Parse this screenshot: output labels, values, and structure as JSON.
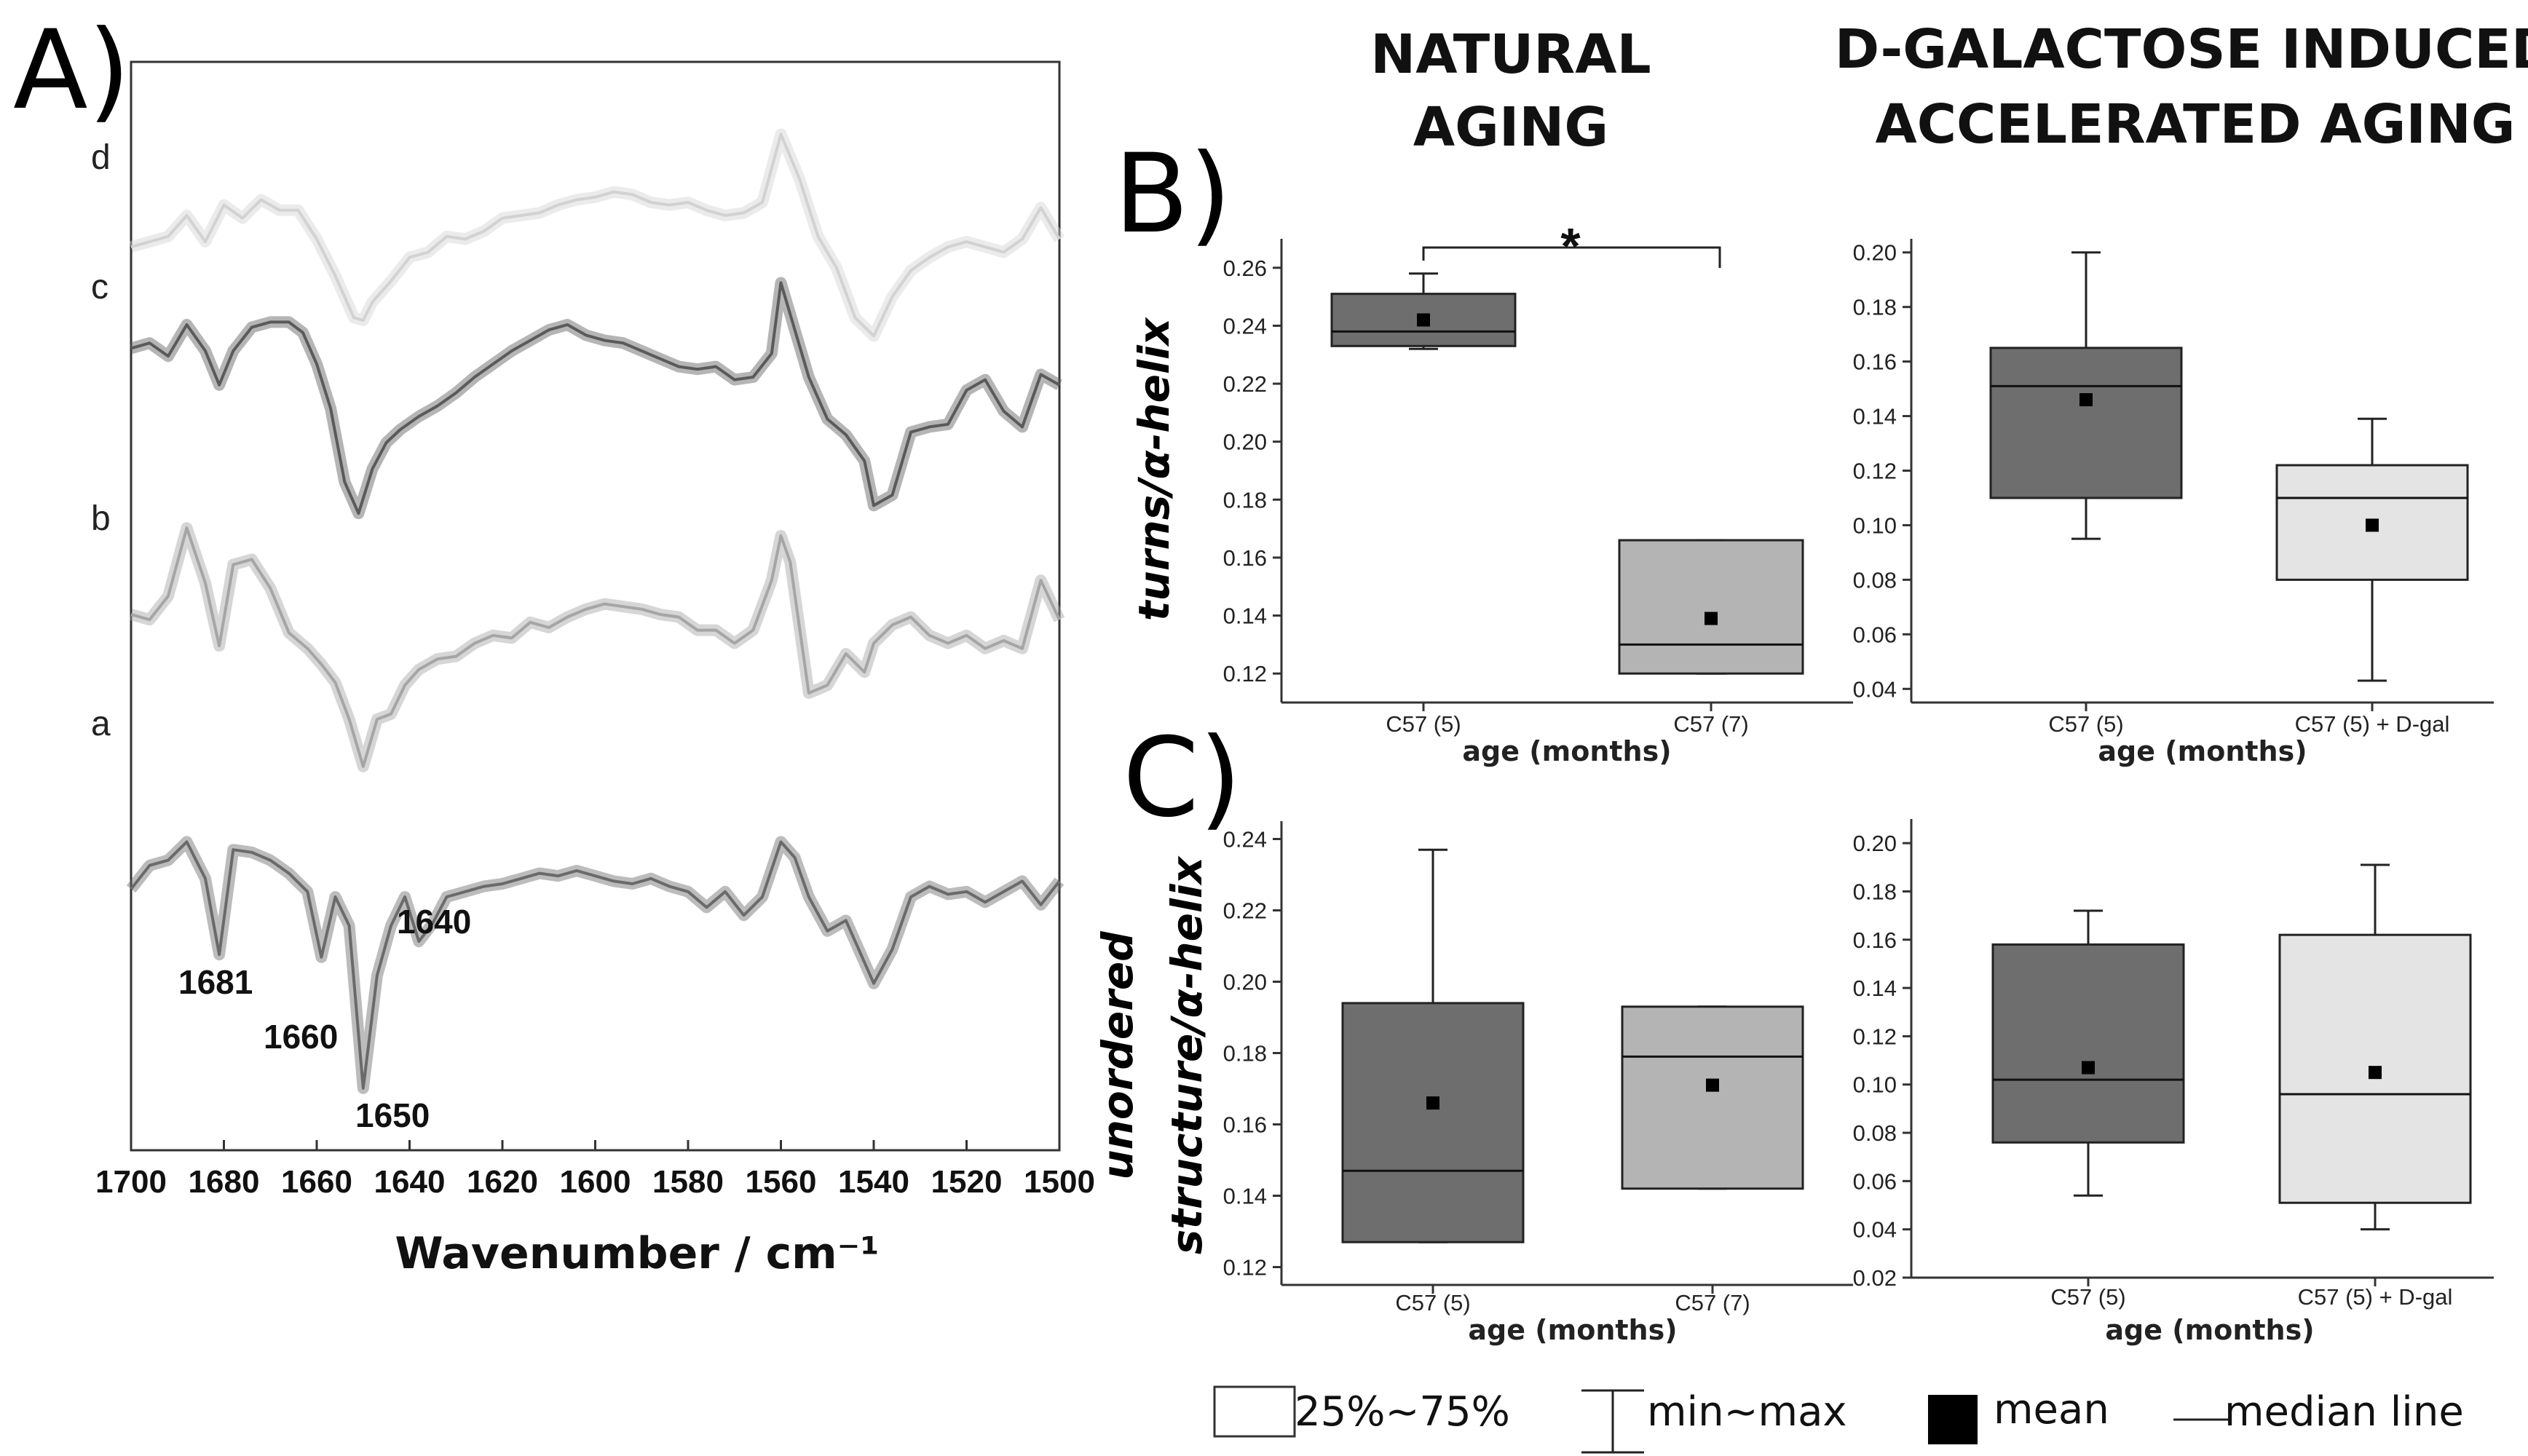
{
  "headings": {
    "natural": [
      "NATURAL",
      "AGING"
    ],
    "dgal": [
      "D-GALACTOSE INDUCED",
      "ACCELERATED AGING"
    ]
  },
  "panel_letters": {
    "a": "A)",
    "b": "B)",
    "c": "C)"
  },
  "y_labels": {
    "b": "turns/α-helix",
    "c_line1": "unordered",
    "c_line2": "structure/α-helix"
  },
  "legend": {
    "box": "25%~75%",
    "whisker": "min~max",
    "mean": "mean",
    "median": "median line"
  },
  "colors": {
    "dark_box": "#6e6e6e",
    "mid_box": "#b4b4b4",
    "light_box": "#e4e4e4"
  },
  "chart_data": [
    {
      "id": "A",
      "type": "line",
      "title": "",
      "xlabel": "Wavenumber  / cm⁻¹",
      "ylabel": "",
      "xlim": [
        1700,
        1500
      ],
      "xticks": [
        "1700",
        "1680",
        "1660",
        "1640",
        "1620",
        "1600",
        "1580",
        "1560",
        "1540",
        "1520",
        "1500"
      ],
      "series": [
        {
          "name": "d",
          "color": "#d2d2d2",
          "x": [
            1700,
            1696,
            1692,
            1688,
            1684,
            1680,
            1676,
            1672,
            1668,
            1664,
            1660,
            1656,
            1652,
            1650,
            1648,
            1644,
            1640,
            1636,
            1632,
            1628,
            1624,
            1620,
            1616,
            1612,
            1608,
            1604,
            1600,
            1596,
            1592,
            1588,
            1584,
            1580,
            1576,
            1572,
            1568,
            1564,
            1560,
            1556,
            1552,
            1548,
            1544,
            1540,
            1536,
            1532,
            1528,
            1524,
            1520,
            1516,
            1512,
            1508,
            1504,
            1500
          ],
          "y": [
            0.44,
            0.4,
            0.36,
            0.2,
            0.4,
            0.12,
            0.22,
            0.08,
            0.16,
            0.16,
            0.38,
            0.66,
            0.98,
            1.0,
            0.86,
            0.7,
            0.52,
            0.48,
            0.36,
            0.38,
            0.32,
            0.22,
            0.2,
            0.18,
            0.12,
            0.08,
            0.06,
            0.02,
            0.04,
            0.1,
            0.12,
            0.1,
            0.16,
            0.2,
            0.18,
            0.1,
            -0.42,
            -0.08,
            0.36,
            0.6,
            0.98,
            1.12,
            0.82,
            0.62,
            0.52,
            0.44,
            0.4,
            0.44,
            0.48,
            0.38,
            0.14,
            0.38
          ]
        },
        {
          "name": "c",
          "color": "#5a5a5a",
          "x": [
            1700,
            1696,
            1692,
            1688,
            1684,
            1681,
            1678,
            1674,
            1670,
            1666,
            1663,
            1660,
            1657,
            1654,
            1651,
            1648,
            1645,
            1642,
            1638,
            1634,
            1630,
            1626,
            1622,
            1618,
            1614,
            1610,
            1606,
            1602,
            1598,
            1594,
            1590,
            1586,
            1582,
            1578,
            1574,
            1570,
            1566,
            1562,
            1560,
            1557,
            1554,
            1550,
            1546,
            1542,
            1540,
            1536,
            1532,
            1528,
            1524,
            1520,
            1516,
            1512,
            1508,
            1504,
            1500
          ],
          "y": [
            0.38,
            0.34,
            0.44,
            0.2,
            0.4,
            0.66,
            0.4,
            0.22,
            0.18,
            0.18,
            0.26,
            0.5,
            0.84,
            1.4,
            1.64,
            1.3,
            1.1,
            1.0,
            0.9,
            0.82,
            0.72,
            0.6,
            0.5,
            0.4,
            0.32,
            0.24,
            0.2,
            0.28,
            0.32,
            0.34,
            0.4,
            0.46,
            0.52,
            0.54,
            0.52,
            0.62,
            0.6,
            0.42,
            -0.12,
            0.24,
            0.6,
            0.92,
            1.04,
            1.24,
            1.58,
            1.5,
            1.02,
            0.98,
            0.96,
            0.7,
            0.62,
            0.86,
            0.98,
            0.58,
            0.66
          ]
        },
        {
          "name": "b",
          "color": "#a5a5a5",
          "x": [
            1700,
            1696,
            1692,
            1688,
            1684,
            1681,
            1678,
            1674,
            1670,
            1666,
            1662,
            1659,
            1656,
            1653,
            1650,
            1647,
            1644,
            1641,
            1638,
            1634,
            1630,
            1626,
            1622,
            1618,
            1614,
            1610,
            1606,
            1602,
            1598,
            1594,
            1590,
            1586,
            1582,
            1578,
            1574,
            1570,
            1566,
            1562,
            1560,
            1558,
            1554,
            1550,
            1546,
            1542,
            1540,
            1536,
            1532,
            1528,
            1524,
            1520,
            1516,
            1512,
            1508,
            1504,
            1500
          ],
          "y": [
            0.8,
            0.84,
            0.66,
            0.14,
            0.56,
            1.04,
            0.42,
            0.38,
            0.6,
            0.94,
            1.06,
            1.18,
            1.32,
            1.6,
            1.96,
            1.6,
            1.56,
            1.34,
            1.22,
            1.14,
            1.12,
            1.02,
            0.96,
            0.98,
            0.86,
            0.9,
            0.82,
            0.76,
            0.72,
            0.74,
            0.76,
            0.8,
            0.82,
            0.92,
            0.92,
            1.02,
            0.92,
            0.54,
            0.2,
            0.4,
            1.4,
            1.34,
            1.1,
            1.24,
            1.02,
            0.88,
            0.82,
            0.96,
            1.02,
            0.96,
            1.06,
            1.0,
            1.06,
            0.54,
            0.84
          ]
        },
        {
          "name": "a",
          "color": "#6a6a6a",
          "x": [
            1700,
            1696,
            1692,
            1688,
            1684,
            1681,
            1678,
            1674,
            1670,
            1666,
            1662,
            1659,
            1656,
            1653,
            1650,
            1647,
            1644,
            1641,
            1638,
            1635,
            1632,
            1628,
            1624,
            1620,
            1616,
            1612,
            1608,
            1604,
            1600,
            1596,
            1592,
            1588,
            1584,
            1580,
            1576,
            1572,
            1568,
            1564,
            1560,
            1557,
            1554,
            1550,
            1546,
            1542,
            1540,
            1536,
            1532,
            1528,
            1524,
            1520,
            1516,
            1512,
            1508,
            1504,
            1500
          ],
          "y": [
            1.34,
            1.16,
            1.12,
            0.98,
            1.26,
            1.84,
            1.04,
            1.06,
            1.12,
            1.22,
            1.36,
            1.86,
            1.4,
            1.62,
            2.86,
            2.0,
            1.62,
            1.4,
            1.74,
            1.6,
            1.4,
            1.36,
            1.32,
            1.3,
            1.26,
            1.22,
            1.24,
            1.2,
            1.24,
            1.28,
            1.3,
            1.26,
            1.32,
            1.36,
            1.48,
            1.36,
            1.54,
            1.4,
            0.98,
            1.1,
            1.4,
            1.66,
            1.58,
            1.9,
            2.06,
            1.8,
            1.4,
            1.32,
            1.38,
            1.36,
            1.44,
            1.36,
            1.28,
            1.46,
            1.28
          ]
        }
      ],
      "peak_labels": [
        {
          "label": "1681",
          "x": 1681
        },
        {
          "label": "1660",
          "x": 1660
        },
        {
          "label": "1650",
          "x": 1650
        },
        {
          "label": "1640",
          "x": 1640
        }
      ]
    },
    {
      "id": "B-natural",
      "type": "box",
      "ylabel": "turns/α-helix",
      "xlabel": "age (months)",
      "ylim": [
        0.11,
        0.27
      ],
      "yticks": [
        "0.12",
        "0.14",
        "0.16",
        "0.18",
        "0.20",
        "0.22",
        "0.24",
        "0.26"
      ],
      "significance": "*",
      "boxes": [
        {
          "category": "C57 (5)",
          "fill": "#6e6e6e",
          "min": 0.232,
          "q1": 0.233,
          "median": 0.238,
          "q3": 0.251,
          "max": 0.258,
          "mean": 0.242
        },
        {
          "category": "C57 (7)",
          "fill": "#b4b4b4",
          "min": 0.12,
          "q1": 0.12,
          "median": 0.13,
          "q3": 0.166,
          "max": 0.166,
          "mean": 0.139
        }
      ]
    },
    {
      "id": "B-dgal",
      "type": "box",
      "ylabel": "",
      "xlabel": "age (months)",
      "ylim": [
        0.035,
        0.205
      ],
      "yticks": [
        "0.04",
        "0.06",
        "0.08",
        "0.10",
        "0.12",
        "0.14",
        "0.16",
        "0.18",
        "0.20"
      ],
      "boxes": [
        {
          "category": "C57 (5)",
          "fill": "#6e6e6e",
          "min": 0.095,
          "q1": 0.11,
          "median": 0.151,
          "q3": 0.165,
          "max": 0.2,
          "mean": 0.146
        },
        {
          "category": "C57 (5) + D-gal",
          "fill": "#e4e4e4",
          "min": 0.043,
          "q1": 0.08,
          "median": 0.11,
          "q3": 0.122,
          "max": 0.139,
          "mean": 0.1
        }
      ]
    },
    {
      "id": "C-natural",
      "type": "box",
      "ylabel": "unordered structure/α-helix",
      "xlabel": "age (months)",
      "ylim": [
        0.115,
        0.245
      ],
      "yticks": [
        "0.12",
        "0.14",
        "0.16",
        "0.18",
        "0.20",
        "0.22",
        "0.24"
      ],
      "boxes": [
        {
          "category": "C57 (5)",
          "fill": "#6e6e6e",
          "min": 0.127,
          "q1": 0.127,
          "median": 0.147,
          "q3": 0.194,
          "max": 0.237,
          "mean": 0.166
        },
        {
          "category": "C57 (7)",
          "fill": "#b4b4b4",
          "min": 0.142,
          "q1": 0.142,
          "median": 0.179,
          "q3": 0.193,
          "max": 0.193,
          "mean": 0.171
        }
      ]
    },
    {
      "id": "C-dgal",
      "type": "box",
      "ylabel": "",
      "xlabel": "age (months)",
      "ylim": [
        0.02,
        0.21
      ],
      "yticks": [
        "0.02",
        "0.04",
        "0.06",
        "0.08",
        "0.10",
        "0.12",
        "0.14",
        "0.16",
        "0.18",
        "0.20"
      ],
      "boxes": [
        {
          "category": "C57 (5)",
          "fill": "#6e6e6e",
          "min": 0.054,
          "q1": 0.076,
          "median": 0.102,
          "q3": 0.158,
          "max": 0.172,
          "mean": 0.107
        },
        {
          "category": "C57 (5) + D-gal",
          "fill": "#e4e4e4",
          "min": 0.04,
          "q1": 0.051,
          "median": 0.096,
          "q3": 0.162,
          "max": 0.191,
          "mean": 0.105
        }
      ]
    }
  ]
}
